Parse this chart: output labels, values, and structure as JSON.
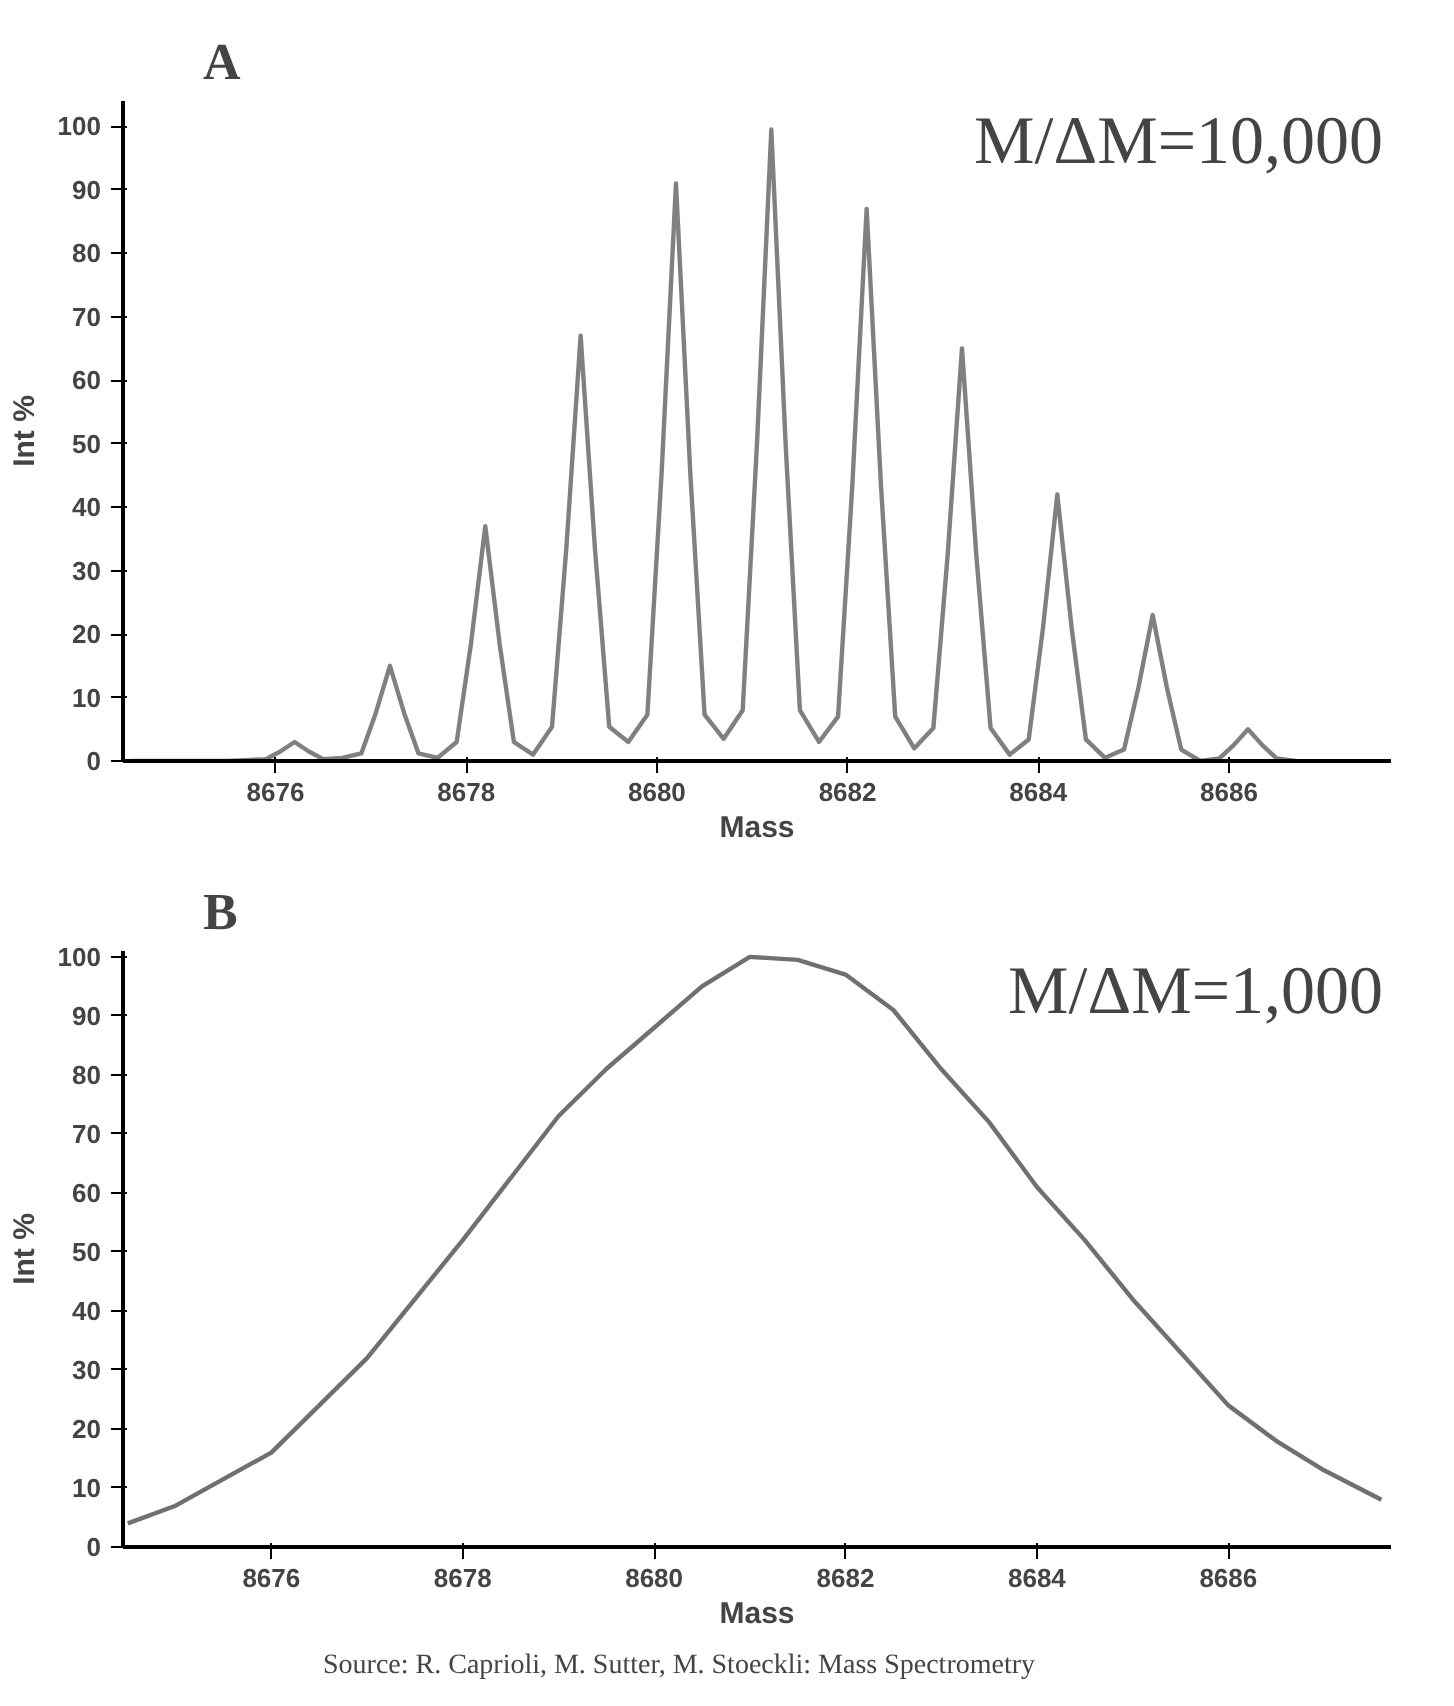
{
  "chart_data": [
    {
      "type": "line",
      "title": "A",
      "xlabel": "Mass",
      "ylabel": "Int %",
      "series": [
        {
          "color": "#808080",
          "x": [
            8674.5,
            8675.5,
            8675.9,
            8676.05,
            8676.2,
            8676.35,
            8676.5,
            8676.7,
            8676.9,
            8677.05,
            8677.2,
            8677.35,
            8677.5,
            8677.7,
            8677.9,
            8678.05,
            8678.2,
            8678.35,
            8678.5,
            8678.7,
            8678.9,
            8679.05,
            8679.2,
            8679.35,
            8679.5,
            8679.7,
            8679.9,
            8680.05,
            8680.2,
            8680.35,
            8680.5,
            8680.7,
            8680.9,
            8681.05,
            8681.2,
            8681.35,
            8681.5,
            8681.7,
            8681.9,
            8682.05,
            8682.2,
            8682.35,
            8682.5,
            8682.7,
            8682.9,
            8683.05,
            8683.2,
            8683.35,
            8683.5,
            8683.7,
            8683.9,
            8684.05,
            8684.2,
            8684.35,
            8684.5,
            8684.7,
            8684.9,
            8685.05,
            8685.2,
            8685.35,
            8685.5,
            8685.7,
            8685.9,
            8686.05,
            8686.2,
            8686.35,
            8686.5,
            8686.7
          ],
          "values": [
            0,
            0,
            0.3,
            1.5,
            3,
            1.5,
            0.3,
            0.5,
            1.2,
            7.5,
            15,
            7.5,
            1.2,
            0.5,
            3,
            18.5,
            37,
            18.5,
            3,
            1,
            5.4,
            33.5,
            67,
            33.5,
            5.4,
            3,
            7.3,
            45.5,
            91,
            45.5,
            7.3,
            3.5,
            8,
            50,
            99.5,
            50,
            8,
            3,
            7,
            43.5,
            87,
            43.5,
            7,
            2,
            5.2,
            32.5,
            65,
            32.5,
            5.2,
            1,
            3.4,
            21,
            42,
            21,
            3.4,
            0.5,
            1.8,
            11.5,
            23,
            11.5,
            1.8,
            0,
            0.4,
            2.5,
            5,
            2.5,
            0.4,
            0
          ]
        }
      ],
      "xlim": [
        8674.4,
        8687.7
      ],
      "ylim": [
        0,
        104
      ],
      "xticks": [
        8676,
        8678,
        8680,
        8682,
        8684,
        8686
      ],
      "yticks": [
        0,
        10,
        20,
        30,
        40,
        50,
        60,
        70,
        80,
        90,
        100
      ],
      "annotations": [
        "M/ΔM=10,000"
      ]
    },
    {
      "type": "line",
      "title": "B",
      "xlabel": "Mass",
      "ylabel": "Int %",
      "series": [
        {
          "color": "#707070",
          "x": [
            8674.5,
            8675,
            8676,
            8677,
            8678,
            8679,
            8679.5,
            8680,
            8680.5,
            8681,
            8681.5,
            8682,
            8682.5,
            8683,
            8683.5,
            8684,
            8684.5,
            8685,
            8685.5,
            8686,
            8686.5,
            8687,
            8687.6
          ],
          "values": [
            4,
            7,
            16,
            32,
            52,
            73,
            81,
            88,
            95,
            100,
            99.5,
            97,
            91,
            81,
            72,
            61,
            52,
            42,
            33,
            24,
            18,
            13,
            8
          ]
        }
      ],
      "xlim": [
        8674.45,
        8687.7
      ],
      "ylim": [
        0,
        101
      ],
      "xticks": [
        8676,
        8678,
        8680,
        8682,
        8684,
        8686
      ],
      "yticks": [
        0,
        10,
        20,
        30,
        40,
        50,
        60,
        70,
        80,
        90,
        100
      ],
      "annotations": [
        "M/ΔM=1,000",
        "Source: R. Caprioli, M. Sutter, M. Stoeckli: Mass Spectrometry"
      ]
    }
  ]
}
